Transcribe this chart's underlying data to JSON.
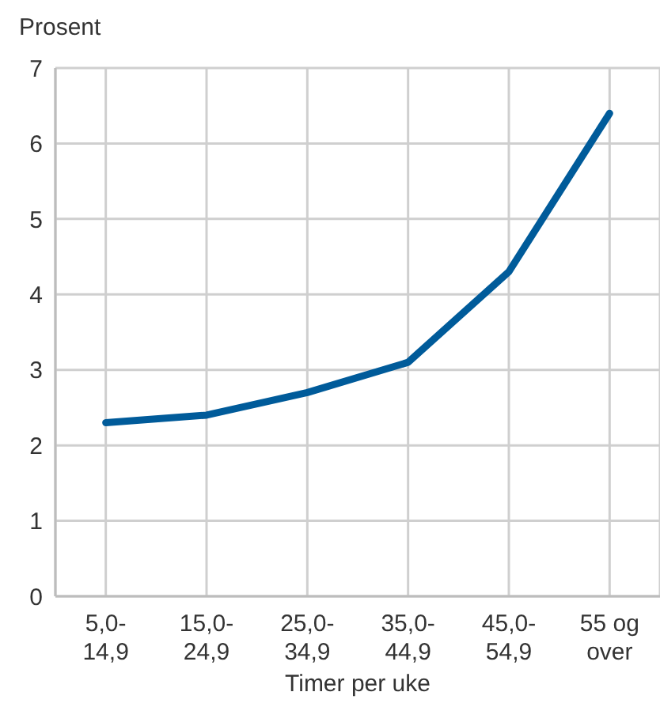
{
  "chart_data": {
    "type": "line",
    "ylabel": "Prosent",
    "xlabel": "Timer per uke",
    "categories": [
      "5,0-\n14,9",
      "15,0-\n24,9",
      "25,0-\n34,9",
      "35,0-\n44,9",
      "45,0-\n54,9",
      "55 og\nover"
    ],
    "series": [
      {
        "color": "#005b9a",
        "values": [
          2.3,
          2.4,
          2.7,
          3.1,
          4.3,
          6.4
        ]
      }
    ],
    "ylim": [
      0,
      7
    ],
    "yticks": [
      0,
      1,
      2,
      3,
      4,
      5,
      6,
      7
    ],
    "grid": true,
    "legend": false,
    "marker": "none",
    "line_style": "solid"
  }
}
